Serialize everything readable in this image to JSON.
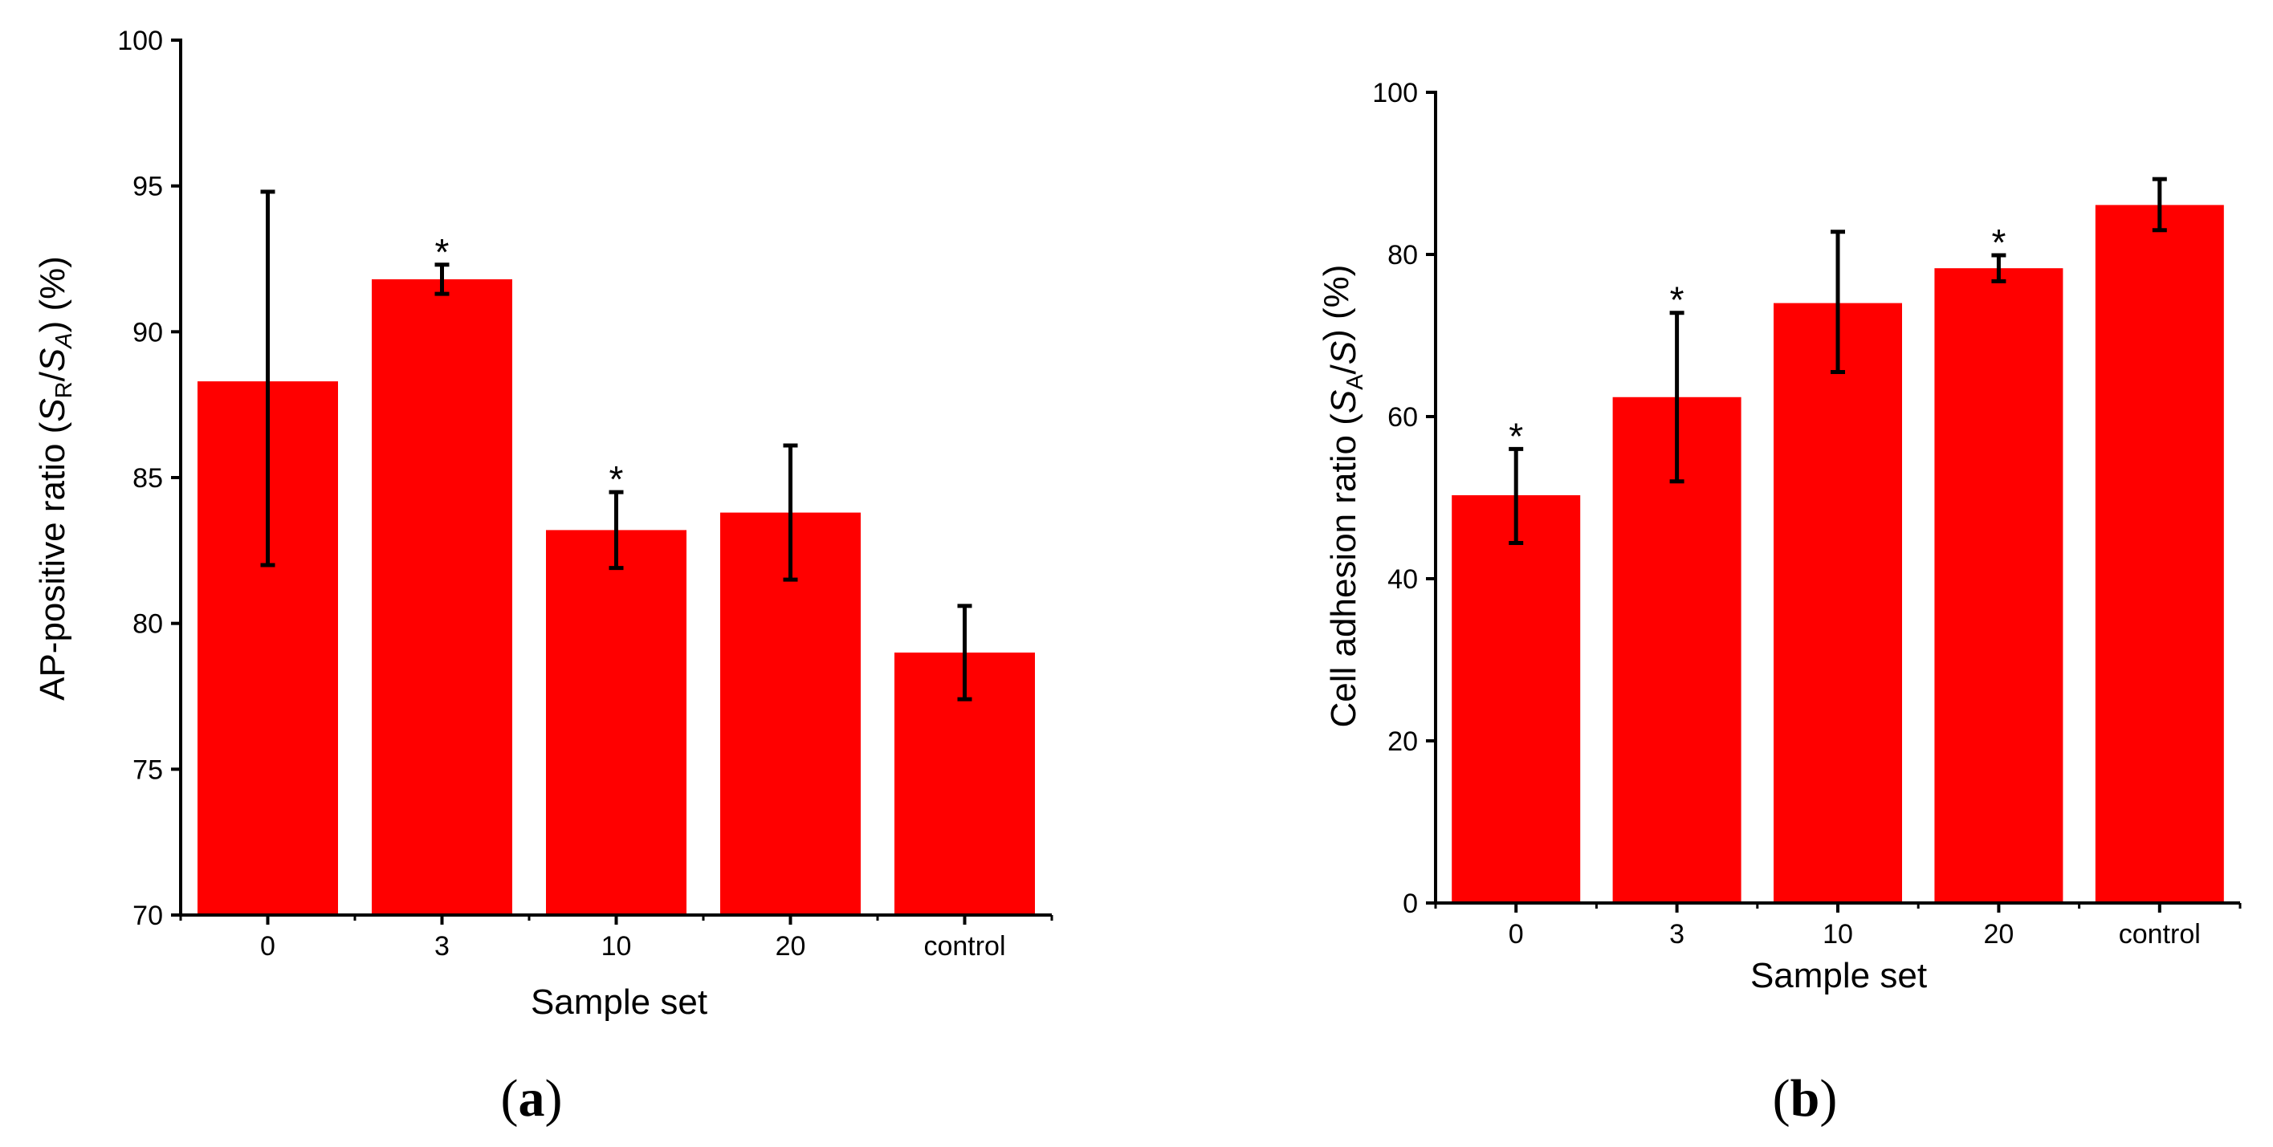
{
  "chart_data": [
    {
      "type": "bar",
      "panel_label_open": "(",
      "panel_label": "a",
      "panel_label_close": ")",
      "categories": [
        "0",
        "3",
        "10",
        "20",
        "control"
      ],
      "values": [
        88.3,
        91.8,
        83.2,
        83.8,
        79.0
      ],
      "error_low": [
        82.0,
        91.3,
        81.9,
        81.5,
        77.4
      ],
      "error_high": [
        94.8,
        92.3,
        84.5,
        86.1,
        80.6
      ],
      "significance": [
        "",
        "*",
        "*",
        "",
        ""
      ],
      "ylim": [
        70,
        100
      ],
      "yticks": [
        70,
        75,
        80,
        85,
        90,
        95,
        100
      ],
      "xlabel": "Sample set",
      "ylabel_prefix": "AP-positive ratio (",
      "ylabel_var1": "S",
      "ylabel_sub1": "R",
      "ylabel_slash": "/",
      "ylabel_var2": "S",
      "ylabel_sub2": "A",
      "ylabel_suffix": ") (%)",
      "bar_color": "#ff0000"
    },
    {
      "type": "bar",
      "panel_label_open": "(",
      "panel_label": "b",
      "panel_label_close": ")",
      "categories": [
        "0",
        "3",
        "10",
        "20",
        "control"
      ],
      "values": [
        50.3,
        62.4,
        74.0,
        78.3,
        86.1
      ],
      "error_low": [
        44.4,
        52.0,
        65.5,
        76.7,
        83.0
      ],
      "error_high": [
        56.0,
        72.8,
        82.8,
        79.9,
        89.3
      ],
      "significance": [
        "*",
        "*",
        "",
        "*",
        ""
      ],
      "ylim": [
        0,
        100
      ],
      "yticks": [
        0,
        20,
        40,
        60,
        80,
        100
      ],
      "xlabel": "Sample set",
      "ylabel_prefix": "Cell adhesion ratio (",
      "ylabel_var1": "S",
      "ylabel_sub1": "A",
      "ylabel_slash": "/",
      "ylabel_var2": "S",
      "ylabel_sub2": "",
      "ylabel_suffix": ") (%)",
      "bar_color": "#ff0000"
    }
  ]
}
